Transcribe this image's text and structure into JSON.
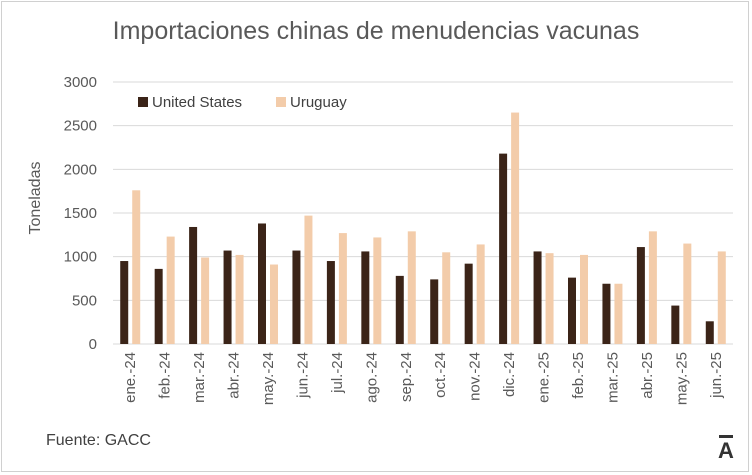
{
  "colors": {
    "us": "#3b2418",
    "uy": "#f3ccaa",
    "grid": "#d9d9d9",
    "text": "#595959"
  },
  "source": "Fuente: GACC",
  "logo_text": "Ā",
  "chart_data": {
    "type": "bar",
    "title": "Importaciones chinas de menudencias vacunas",
    "xlabel": "",
    "ylabel": "Toneladas",
    "ylim": [
      0,
      3000
    ],
    "yticks": [
      0,
      500,
      1000,
      1500,
      2000,
      2500,
      3000
    ],
    "yticks_labels": [
      "0",
      "500",
      "1000",
      "1500",
      "2000",
      "2500",
      "3000"
    ],
    "grid": true,
    "legend": "top-left",
    "categories": [
      "ene.-24",
      "feb.-24",
      "mar.-24",
      "abr.-24",
      "may.-24",
      "jun.-24",
      "jul.-24",
      "ago.-24",
      "sep.-24",
      "oct.-24",
      "nov.-24",
      "dic.-24",
      "ene.-25",
      "feb.-25",
      "mar.-25",
      "abr.-25",
      "may.-25",
      "jun.-25"
    ],
    "series": [
      {
        "name": "United States",
        "values": [
          950,
          860,
          1340,
          1070,
          1380,
          1070,
          950,
          1060,
          780,
          740,
          920,
          2180,
          1060,
          760,
          690,
          1110,
          440,
          260
        ]
      },
      {
        "name": "Uruguay",
        "values": [
          1760,
          1230,
          990,
          1020,
          910,
          1470,
          1270,
          1220,
          1290,
          1050,
          1140,
          2650,
          1040,
          1020,
          690,
          1290,
          1150,
          1060
        ]
      }
    ]
  }
}
